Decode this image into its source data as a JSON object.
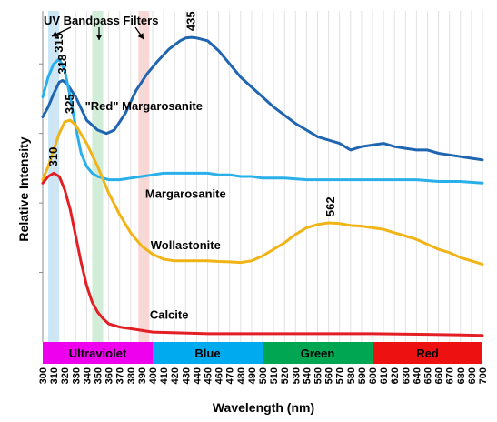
{
  "chart_data": {
    "type": "line",
    "xlabel": "Wavelength (nm)",
    "ylabel": "Relative Intensity",
    "xlim": [
      300,
      700
    ],
    "x_ticks": [
      "300",
      "310",
      "320",
      "330",
      "340",
      "350",
      "360",
      "370",
      "380",
      "390",
      "400",
      "410",
      "420",
      "430",
      "440",
      "450",
      "460",
      "470",
      "480",
      "490",
      "500",
      "510",
      "520",
      "530",
      "540",
      "550",
      "560",
      "570",
      "580",
      "590",
      "600",
      "610",
      "620",
      "630",
      "640",
      "650",
      "660",
      "670",
      "680",
      "690",
      "700"
    ],
    "ylim": [
      0,
      100
    ],
    "y_tick_values": [
      21,
      42,
      63,
      84
    ],
    "grid": "vertical",
    "annotation": "UV Bandpass Filters",
    "filters": [
      {
        "center": 310,
        "width": 10,
        "color": "#bfe3f5"
      },
      {
        "center": 350,
        "width": 10,
        "color": "#c9ead0"
      },
      {
        "center": 392,
        "width": 10,
        "color": "#f9d0cc"
      }
    ],
    "bands": [
      {
        "label": "Ultraviolet",
        "from": 300,
        "to": 400,
        "color": "#ee00ee"
      },
      {
        "label": "Blue",
        "from": 400,
        "to": 500,
        "color": "#00aaee"
      },
      {
        "label": "Green",
        "from": 500,
        "to": 600,
        "color": "#00a651"
      },
      {
        "label": "Red",
        "from": 600,
        "to": 700,
        "color": "#ee1111"
      }
    ],
    "series": [
      {
        "name": "\"Red\" Margarosanite",
        "color": "#1f65b0",
        "label_at": [
          392,
          70
        ],
        "peaks": [
          {
            "x": 318,
            "label": "318"
          },
          {
            "x": 435,
            "label": "435"
          }
        ],
        "points": [
          [
            300,
            68
          ],
          [
            305,
            71
          ],
          [
            310,
            75
          ],
          [
            315,
            78.5
          ],
          [
            318,
            79
          ],
          [
            322,
            78
          ],
          [
            330,
            74
          ],
          [
            340,
            67
          ],
          [
            350,
            64
          ],
          [
            358,
            63
          ],
          [
            365,
            64
          ],
          [
            375,
            69
          ],
          [
            385,
            76
          ],
          [
            395,
            81
          ],
          [
            405,
            85
          ],
          [
            415,
            88.5
          ],
          [
            425,
            91
          ],
          [
            430,
            91.8
          ],
          [
            435,
            92
          ],
          [
            440,
            91.8
          ],
          [
            450,
            91
          ],
          [
            460,
            88
          ],
          [
            470,
            84
          ],
          [
            480,
            80
          ],
          [
            490,
            77
          ],
          [
            500,
            74
          ],
          [
            510,
            71
          ],
          [
            520,
            68.5
          ],
          [
            530,
            66
          ],
          [
            540,
            64
          ],
          [
            550,
            62
          ],
          [
            560,
            61
          ],
          [
            570,
            60
          ],
          [
            580,
            58
          ],
          [
            590,
            59
          ],
          [
            600,
            59.5
          ],
          [
            610,
            60
          ],
          [
            620,
            59
          ],
          [
            630,
            58.5
          ],
          [
            640,
            58
          ],
          [
            650,
            58
          ],
          [
            660,
            57
          ],
          [
            670,
            56.5
          ],
          [
            680,
            56
          ],
          [
            690,
            55.5
          ],
          [
            700,
            55
          ]
        ]
      },
      {
        "name": "Margarosanite",
        "color": "#29b0ea",
        "label_at": [
          430,
          43.5
        ],
        "peaks": [
          {
            "x": 315,
            "label": "315"
          }
        ],
        "points": [
          [
            300,
            74
          ],
          [
            305,
            80
          ],
          [
            310,
            84
          ],
          [
            315,
            85.5
          ],
          [
            320,
            82
          ],
          [
            325,
            74
          ],
          [
            330,
            65
          ],
          [
            335,
            57
          ],
          [
            340,
            53
          ],
          [
            345,
            51
          ],
          [
            350,
            50
          ],
          [
            360,
            49
          ],
          [
            370,
            49
          ],
          [
            380,
            49.5
          ],
          [
            390,
            50
          ],
          [
            400,
            50.5
          ],
          [
            410,
            51
          ],
          [
            420,
            51
          ],
          [
            430,
            51
          ],
          [
            440,
            51
          ],
          [
            450,
            51
          ],
          [
            460,
            50.5
          ],
          [
            470,
            50.5
          ],
          [
            480,
            50
          ],
          [
            490,
            50
          ],
          [
            500,
            49.5
          ],
          [
            520,
            49.5
          ],
          [
            540,
            49
          ],
          [
            560,
            49
          ],
          [
            580,
            49
          ],
          [
            600,
            49
          ],
          [
            620,
            49
          ],
          [
            640,
            49
          ],
          [
            660,
            48.5
          ],
          [
            680,
            48.5
          ],
          [
            700,
            48
          ]
        ]
      },
      {
        "name": "Wollastonite",
        "color": "#f1b416",
        "label_at": [
          430,
          28
        ],
        "peaks": [
          {
            "x": 325,
            "label": "325"
          },
          {
            "x": 562,
            "label": "562"
          }
        ],
        "points": [
          [
            300,
            49
          ],
          [
            305,
            53
          ],
          [
            310,
            58
          ],
          [
            315,
            63
          ],
          [
            320,
            66.5
          ],
          [
            325,
            67
          ],
          [
            330,
            65.5
          ],
          [
            340,
            60
          ],
          [
            350,
            53
          ],
          [
            360,
            45
          ],
          [
            370,
            38.5
          ],
          [
            380,
            33
          ],
          [
            390,
            29
          ],
          [
            400,
            26.5
          ],
          [
            410,
            25
          ],
          [
            420,
            24.5
          ],
          [
            430,
            24.5
          ],
          [
            440,
            24.5
          ],
          [
            450,
            24.5
          ],
          [
            460,
            24.3
          ],
          [
            470,
            24.2
          ],
          [
            480,
            24
          ],
          [
            490,
            24.5
          ],
          [
            500,
            26
          ],
          [
            510,
            28
          ],
          [
            520,
            30
          ],
          [
            530,
            32.5
          ],
          [
            540,
            34.5
          ],
          [
            550,
            35.5
          ],
          [
            560,
            36
          ],
          [
            570,
            35.8
          ],
          [
            580,
            35.2
          ],
          [
            590,
            35
          ],
          [
            600,
            34.5
          ],
          [
            610,
            34
          ],
          [
            620,
            33
          ],
          [
            630,
            32
          ],
          [
            640,
            31
          ],
          [
            650,
            29.5
          ],
          [
            660,
            28
          ],
          [
            670,
            27
          ],
          [
            680,
            25.5
          ],
          [
            690,
            24.5
          ],
          [
            700,
            23.5
          ]
        ]
      },
      {
        "name": "Calcite",
        "color": "#e31e24",
        "label_at": [
          415,
          7
        ],
        "peaks": [
          {
            "x": 310,
            "label": "310"
          }
        ],
        "points": [
          [
            300,
            48
          ],
          [
            305,
            50
          ],
          [
            310,
            51
          ],
          [
            315,
            50
          ],
          [
            320,
            46
          ],
          [
            325,
            40
          ],
          [
            330,
            32
          ],
          [
            335,
            24
          ],
          [
            340,
            17
          ],
          [
            345,
            12
          ],
          [
            350,
            9
          ],
          [
            355,
            7
          ],
          [
            360,
            5.5
          ],
          [
            370,
            4.5
          ],
          [
            380,
            4
          ],
          [
            400,
            3
          ],
          [
            450,
            2.5
          ],
          [
            500,
            2.5
          ],
          [
            550,
            2.5
          ],
          [
            600,
            2.5
          ],
          [
            650,
            2.3
          ],
          [
            700,
            2
          ]
        ]
      }
    ]
  }
}
